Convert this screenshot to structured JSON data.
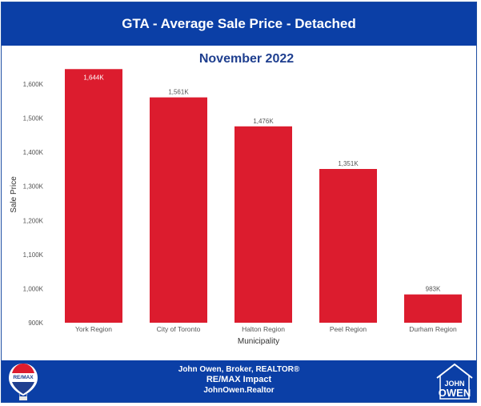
{
  "header": {
    "title": "GTA - Average Sale Price - Detached"
  },
  "chart_data": {
    "type": "bar",
    "title": "November 2022",
    "xlabel": "Municipality",
    "ylabel": "Sale Price",
    "categories": [
      "York Region",
      "City of Toronto",
      "Halton Region",
      "Peel Region",
      "Durham Region"
    ],
    "values": [
      1644000,
      1561000,
      1476000,
      1351000,
      983000
    ],
    "data_labels": [
      "1,644K",
      "1,561K",
      "1,476K",
      "1,351K",
      "983K"
    ],
    "yticks": [
      900000,
      1000000,
      1100000,
      1200000,
      1300000,
      1400000,
      1500000,
      1600000
    ],
    "ytick_labels": [
      "900K",
      "1,000K",
      "1,100K",
      "1,200K",
      "1,300K",
      "1,400K",
      "1,500K",
      "1,600K"
    ],
    "ylim": [
      900000,
      1680000
    ],
    "grid": false,
    "bar_color": "#dc1c2e"
  },
  "footer": {
    "line1": "John Owen, Broker, REALTOR®",
    "line2": "RE/MAX Impact",
    "line3": "JohnOwen.Realtor"
  },
  "logos": {
    "remax_text": "RE/MAX",
    "jo_line1": "JOHN",
    "jo_line2": "OWEN"
  },
  "colors": {
    "brand_blue": "#0b3fa6",
    "title_blue": "#1f3f8f",
    "bar_red": "#dc1c2e"
  }
}
